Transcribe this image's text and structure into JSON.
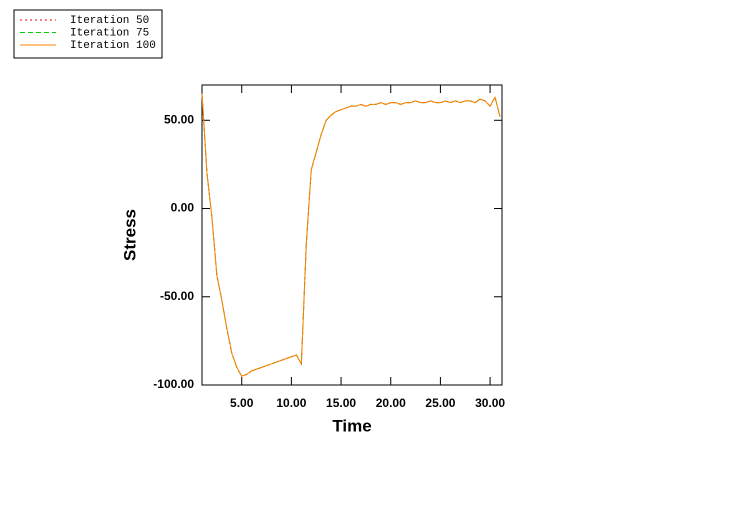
{
  "chart_data": {
    "type": "line",
    "xlabel": "Time",
    "ylabel": "Stress",
    "xlim": [
      1,
      31.2
    ],
    "ylim": [
      -100,
      70
    ],
    "xticks": [
      {
        "value": 5,
        "label": "5.00"
      },
      {
        "value": 10,
        "label": "10.00"
      },
      {
        "value": 15,
        "label": "15.00"
      },
      {
        "value": 20,
        "label": "20.00"
      },
      {
        "value": 25,
        "label": "25.00"
      },
      {
        "value": 30,
        "label": "30.00"
      }
    ],
    "yticks": [
      {
        "value": -100,
        "label": "-100.00"
      },
      {
        "value": -50,
        "label": "-50.00"
      },
      {
        "value": 0,
        "label": "0.00"
      },
      {
        "value": 50,
        "label": "50.00"
      }
    ],
    "legend": "top-left",
    "x": [
      1,
      1.5,
      2,
      2.5,
      3,
      3.5,
      4,
      4.5,
      5,
      5.5,
      6,
      6.5,
      7,
      7.5,
      8,
      8.5,
      9,
      9.5,
      10,
      10.5,
      11,
      11.5,
      12,
      12.5,
      13,
      13.5,
      14,
      14.5,
      15,
      15.5,
      16,
      16.5,
      17,
      17.5,
      18,
      18.5,
      19,
      19.5,
      20,
      20.5,
      21,
      21.5,
      22,
      22.5,
      23,
      23.5,
      24,
      24.5,
      25,
      25.5,
      26,
      26.5,
      27,
      27.5,
      28,
      28.5,
      29,
      29.5,
      30,
      30.5,
      31
    ],
    "series": [
      {
        "name": "Iteration 50",
        "color": "#ff0000",
        "dash": "2,3",
        "values": [
          65,
          20,
          -5,
          -38,
          -52,
          -68,
          -82,
          -90,
          -95,
          -94,
          -92,
          -91,
          -90,
          -89,
          -88,
          -87,
          -86,
          -85,
          -84,
          -83,
          -88,
          -20,
          22,
          32,
          42,
          50,
          53,
          55,
          56,
          57,
          58,
          58,
          59,
          58,
          59,
          59,
          60,
          59,
          60,
          60,
          59,
          60,
          60,
          61,
          60,
          60,
          61,
          60,
          60,
          61,
          60,
          61,
          60,
          61,
          61,
          60,
          62,
          61,
          58,
          63,
          52
        ]
      },
      {
        "name": "Iteration 75",
        "color": "#00cc00",
        "dash": "5,3",
        "values": [
          65,
          20,
          -5,
          -38,
          -52,
          -68,
          -82,
          -90,
          -95,
          -94,
          -92,
          -91,
          -90,
          -89,
          -88,
          -87,
          -86,
          -85,
          -84,
          -83,
          -88,
          -20,
          22,
          32,
          42,
          50,
          53,
          55,
          56,
          57,
          58,
          58,
          59,
          58,
          59,
          59,
          60,
          59,
          60,
          60,
          59,
          60,
          60,
          61,
          60,
          60,
          61,
          60,
          60,
          61,
          60,
          61,
          60,
          61,
          61,
          60,
          62,
          61,
          58,
          63,
          52
        ]
      },
      {
        "name": "Iteration 100",
        "color": "#ff8000",
        "dash": "",
        "values": [
          65,
          20,
          -5,
          -38,
          -52,
          -68,
          -82,
          -90,
          -95,
          -94,
          -92,
          -91,
          -90,
          -89,
          -88,
          -87,
          -86,
          -85,
          -84,
          -83,
          -88,
          -20,
          22,
          32,
          42,
          50,
          53,
          55,
          56,
          57,
          58,
          58,
          59,
          58,
          59,
          59,
          60,
          59,
          60,
          60,
          59,
          60,
          60,
          61,
          60,
          60,
          61,
          60,
          60,
          61,
          60,
          61,
          60,
          61,
          61,
          60,
          62,
          61,
          58,
          63,
          52
        ]
      }
    ]
  }
}
